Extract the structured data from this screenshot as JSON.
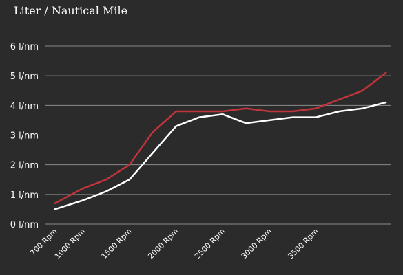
{
  "chart_data": {
    "type": "line",
    "title": "Liter / Nautical Mile",
    "xlabel": "",
    "ylabel": "",
    "x": [
      700,
      1000,
      1250,
      1500,
      1750,
      2000,
      2250,
      2500,
      2750,
      3000,
      3250,
      3500,
      3750,
      4000,
      4250
    ],
    "x_ticks": [
      {
        "value": 700,
        "label": "700 Rpm"
      },
      {
        "value": 1000,
        "label": "1000 Rpm"
      },
      {
        "value": 1500,
        "label": "1500 Rpm"
      },
      {
        "value": 2000,
        "label": "2000 Rpm"
      },
      {
        "value": 2500,
        "label": "2500 Rpm"
      },
      {
        "value": 3000,
        "label": "3000 Rpm"
      },
      {
        "value": 3500,
        "label": "3500 Rpm"
      }
    ],
    "y_ticks": [
      {
        "value": 0,
        "label": "0 l/nm"
      },
      {
        "value": 1,
        "label": "1 l/nm"
      },
      {
        "value": 2,
        "label": "2 l/nm"
      },
      {
        "value": 3,
        "label": "3 l/nm"
      },
      {
        "value": 4,
        "label": "4 l/nm"
      },
      {
        "value": 5,
        "label": "5 l/nm"
      },
      {
        "value": 6,
        "label": "6 l/nm"
      }
    ],
    "ylim": [
      0,
      6
    ],
    "grid": true,
    "series": [
      {
        "color": "#c0353b",
        "values": [
          0.7,
          1.2,
          1.5,
          2.0,
          3.1,
          3.8,
          3.8,
          3.8,
          3.9,
          3.8,
          3.8,
          3.9,
          4.2,
          4.5,
          5.1
        ]
      },
      {
        "color": "#ffffff",
        "values": [
          0.5,
          0.8,
          1.1,
          1.5,
          2.4,
          3.3,
          3.6,
          3.7,
          3.4,
          3.5,
          3.6,
          3.6,
          3.8,
          3.9,
          4.1
        ]
      }
    ]
  }
}
